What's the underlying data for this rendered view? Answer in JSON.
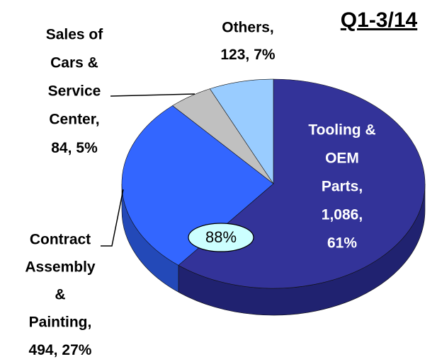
{
  "chart_data": {
    "type": "pie",
    "title": "Q1-3/14",
    "annotation": "88%",
    "categories": [
      [
        "Tooling &",
        "OEM",
        "Parts,"
      ],
      [
        "Contract",
        "Assembly",
        "&",
        "Painting,"
      ],
      [
        "Sales of",
        "Cars &",
        "Service",
        "Center,"
      ],
      [
        "Others,"
      ]
    ],
    "values": [
      1086,
      494,
      84,
      123
    ],
    "value_labels": [
      "1,086,",
      "494,",
      "84,",
      "123,"
    ],
    "percents": [
      61,
      27,
      5,
      7
    ],
    "percent_labels": [
      "61%",
      "27%",
      "5%",
      "7%"
    ],
    "colors": [
      "#333399",
      "#3366ff",
      "#c0c0c0",
      "#99ccff"
    ],
    "side_colors": [
      "#202270",
      "#2349b8",
      "#8c8c8c",
      "#6f9fd2"
    ]
  }
}
